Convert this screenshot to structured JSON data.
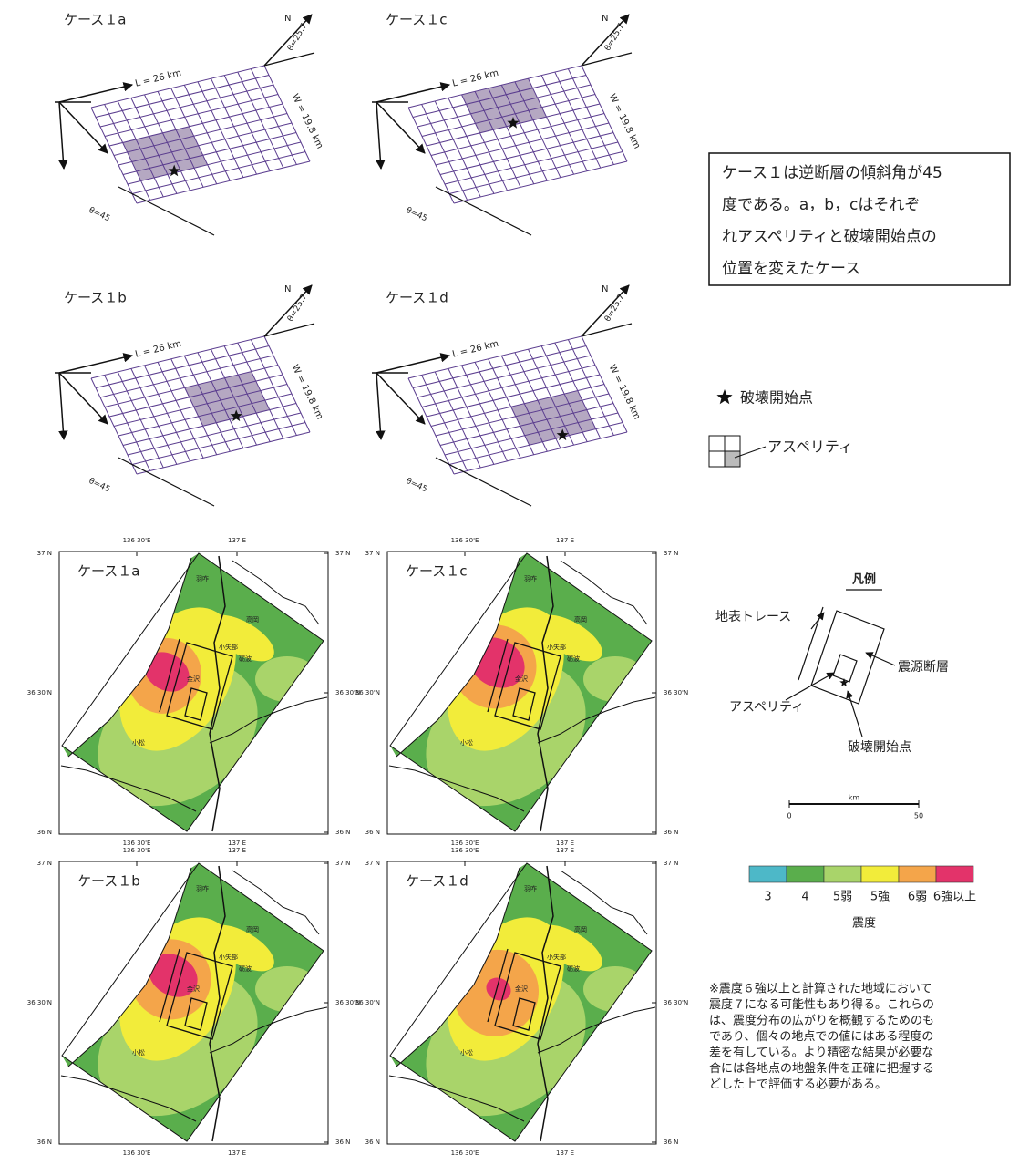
{
  "fault_cases": [
    {
      "label": "ケース１a"
    },
    {
      "label": "ケース１c"
    },
    {
      "label": "ケース１b"
    },
    {
      "label": "ケース１d"
    }
  ],
  "fault_labels": {
    "length": "L = 26 km",
    "width": "W = 19.8 km",
    "strike": "θ=25.7",
    "dip": "θ=45",
    "north": "N"
  },
  "description": [
    "ケース１は逆断層の傾斜角が45",
    "度である。a，b，cはそれぞ",
    "れアスペリティと破壊開始点の",
    "位置を変えたケース"
  ],
  "symbol_legend": {
    "hypocenter": "破壊開始点",
    "asperity": "アスペリティ"
  },
  "maps": [
    {
      "label": "ケース１a"
    },
    {
      "label": "ケース１c"
    },
    {
      "label": "ケース１b"
    },
    {
      "label": "ケース１d"
    }
  ],
  "map_axes": {
    "lon": [
      "136 30'E",
      "137 E"
    ],
    "lat": [
      "37 N",
      "36 30'N",
      "36 N"
    ]
  },
  "place_names": [
    "羽咋",
    "高岡",
    "小矢部",
    "砺波",
    "金沢",
    "小松"
  ],
  "map_legend": {
    "title": "凡例",
    "trace": "地表トレース",
    "fault": "震源断層",
    "asperity": "アスペリティ",
    "hypocenter": "破壊開始点"
  },
  "scale_bar": {
    "unit": "km",
    "min": "0",
    "max": "50"
  },
  "intensity_scale": {
    "title": "震度",
    "classes": [
      {
        "label": "3",
        "color": "#4db8c8"
      },
      {
        "label": "4",
        "color": "#5aae4c"
      },
      {
        "label": "5弱",
        "color": "#a9d46a"
      },
      {
        "label": "5強",
        "color": "#f2ec3a"
      },
      {
        "label": "6弱",
        "color": "#f4a54a"
      },
      {
        "label": "6強以上",
        "color": "#e3336a"
      }
    ]
  },
  "note": [
    "※震度６強以上と計算された地域において",
    "震度７になる可能性もあり得る。これらの",
    "は、震度分布の広がりを概観するためのも",
    "であり、個々の地点での値にはある程度の",
    "差を有している。より精密な結果が必要な",
    "合には各地点の地盤条件を正確に把握する",
    "どした上で評価する必要がある。"
  ]
}
